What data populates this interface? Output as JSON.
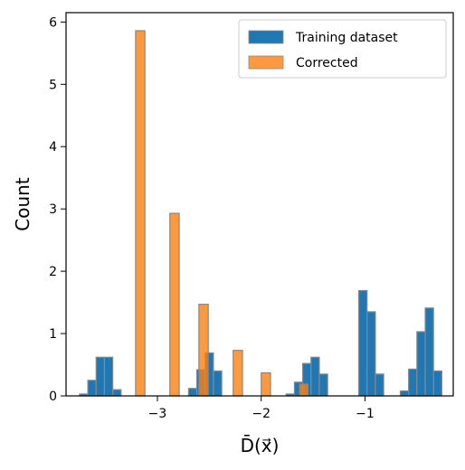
{
  "chart_data": {
    "type": "bar",
    "xlabel": "D̄(x⃗)",
    "ylabel": "Count",
    "xlim": [
      -3.88,
      -0.15
    ],
    "ylim": [
      0,
      6.15
    ],
    "xticks": [
      -3,
      -2,
      -1
    ],
    "xtick_labels": [
      "−3",
      "−2",
      "−1"
    ],
    "yticks": [
      0,
      1,
      2,
      3,
      4,
      5,
      6
    ],
    "ytick_labels": [
      "0",
      "1",
      "2",
      "3",
      "4",
      "5",
      "6"
    ],
    "legend_position": "top-right",
    "grid": false,
    "series": [
      {
        "name": "Training dataset",
        "color": "#1f77b4",
        "bins": [
          {
            "x0": -3.75,
            "x1": -3.67,
            "value": 0.03
          },
          {
            "x0": -3.67,
            "x1": -3.59,
            "value": 0.25
          },
          {
            "x0": -3.59,
            "x1": -3.51,
            "value": 0.62
          },
          {
            "x0": -3.51,
            "x1": -3.43,
            "value": 0.62
          },
          {
            "x0": -3.43,
            "x1": -3.35,
            "value": 0.1
          },
          {
            "x0": -2.7,
            "x1": -2.62,
            "value": 0.12
          },
          {
            "x0": -2.62,
            "x1": -2.54,
            "value": 0.42
          },
          {
            "x0": -2.54,
            "x1": -2.46,
            "value": 0.69
          },
          {
            "x0": -2.46,
            "x1": -2.38,
            "value": 0.4
          },
          {
            "x0": -1.76,
            "x1": -1.68,
            "value": 0.03
          },
          {
            "x0": -1.68,
            "x1": -1.6,
            "value": 0.22
          },
          {
            "x0": -1.6,
            "x1": -1.52,
            "value": 0.52
          },
          {
            "x0": -1.52,
            "x1": -1.44,
            "value": 0.62
          },
          {
            "x0": -1.44,
            "x1": -1.36,
            "value": 0.35
          },
          {
            "x0": -1.06,
            "x1": -0.98,
            "value": 1.69
          },
          {
            "x0": -0.98,
            "x1": -0.9,
            "value": 1.35
          },
          {
            "x0": -0.9,
            "x1": -0.82,
            "value": 0.35
          },
          {
            "x0": -0.66,
            "x1": -0.58,
            "value": 0.08
          },
          {
            "x0": -0.58,
            "x1": -0.5,
            "value": 0.43
          },
          {
            "x0": -0.5,
            "x1": -0.42,
            "value": 1.03
          },
          {
            "x0": -0.42,
            "x1": -0.34,
            "value": 1.41
          },
          {
            "x0": -0.34,
            "x1": -0.26,
            "value": 0.4
          }
        ]
      },
      {
        "name": "Corrected",
        "color": "#ff7f0e",
        "bins": [
          {
            "x0": -3.21,
            "x1": -3.12,
            "value": 5.86
          },
          {
            "x0": -2.88,
            "x1": -2.79,
            "value": 2.93
          },
          {
            "x0": -2.6,
            "x1": -2.51,
            "value": 1.47
          },
          {
            "x0": -2.27,
            "x1": -2.18,
            "value": 0.73
          },
          {
            "x0": -2.0,
            "x1": -1.91,
            "value": 0.37
          },
          {
            "x0": -1.63,
            "x1": -1.55,
            "value": 0.19
          }
        ]
      }
    ]
  }
}
